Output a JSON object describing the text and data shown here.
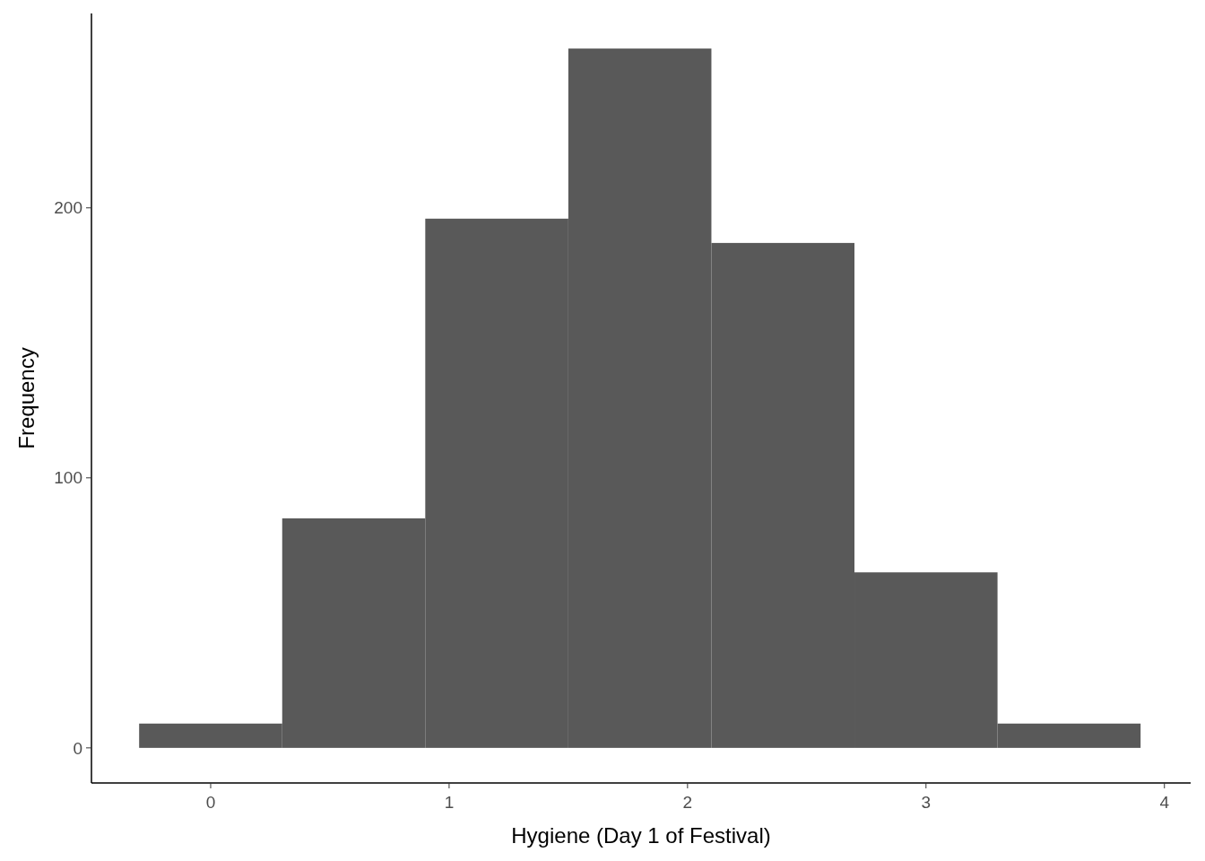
{
  "chart_data": {
    "type": "histogram",
    "xlabel": "Hygiene (Day 1 of Festival)",
    "ylabel": "Frequency",
    "color": "#595959",
    "bins": [
      -0.3,
      0.3,
      0.9,
      1.5,
      2.1,
      2.7,
      3.3,
      3.9
    ],
    "values": [
      9,
      85,
      196,
      259,
      187,
      65,
      9
    ],
    "xlim": [
      -0.5,
      4.11
    ],
    "ylim": [
      -13,
      272
    ],
    "xticks": [
      0,
      1,
      2,
      3,
      4
    ],
    "yticks": [
      0,
      100,
      200
    ],
    "grid": false
  }
}
